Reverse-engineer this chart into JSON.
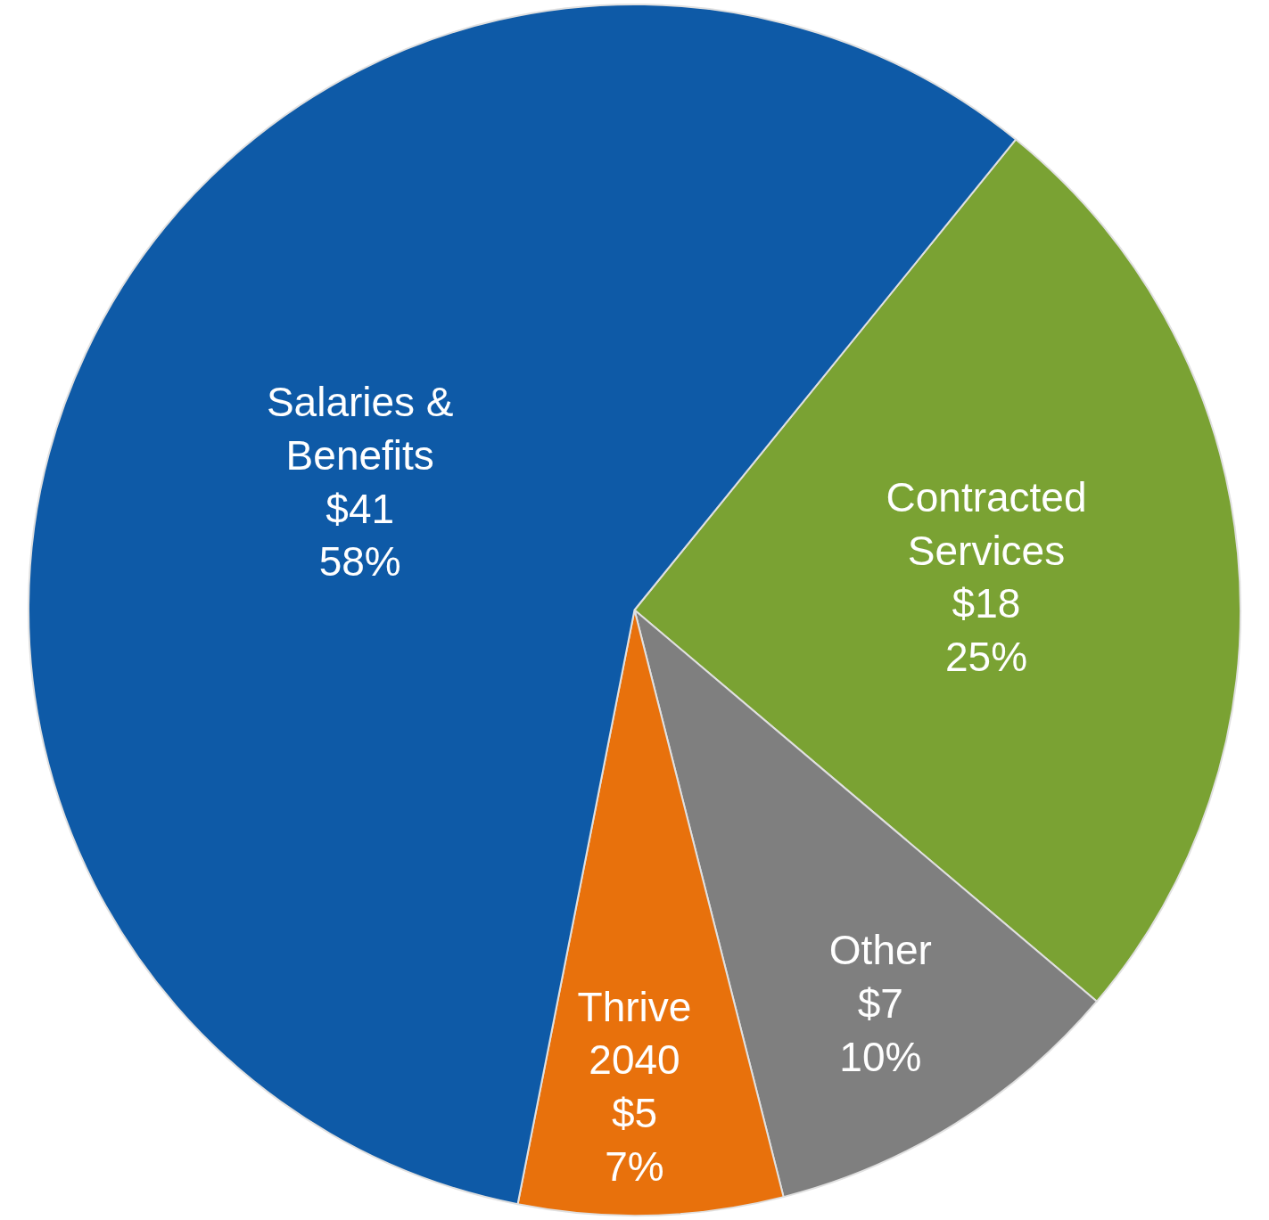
{
  "chart_data": {
    "type": "pie",
    "categories": [
      "Contracted Services",
      "Other",
      "Thrive 2040",
      "Salaries & Benefits"
    ],
    "values": [
      18,
      7,
      5,
      41
    ],
    "value_labels": [
      "$18\n25%",
      "$7\n10%",
      "$5\n7%",
      "$41\n58%"
    ],
    "colors": [
      "#7aa233",
      "#7f7f7f",
      "#e8710c",
      "#0e5aa7"
    ],
    "legend": false
  }
}
